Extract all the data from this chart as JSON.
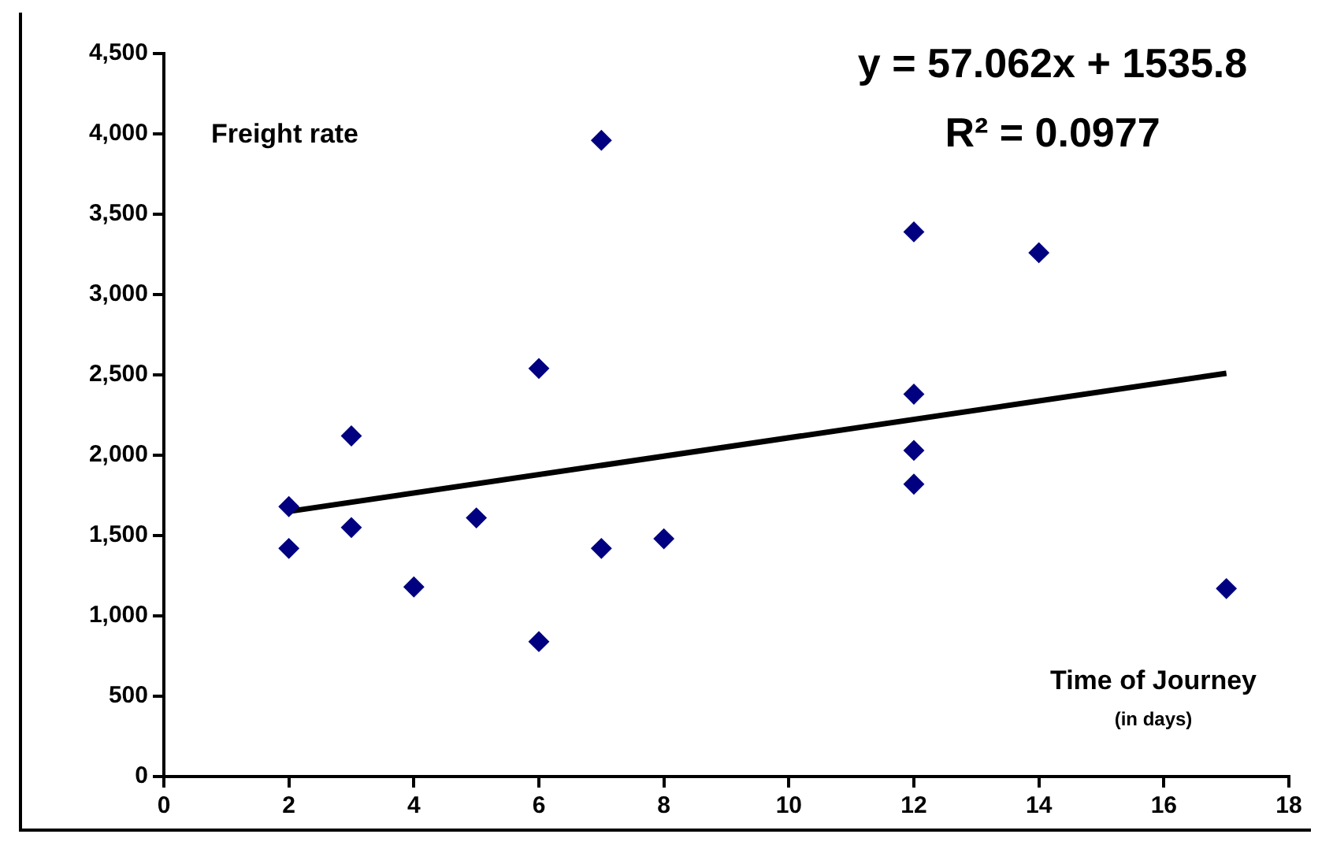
{
  "chart_data": {
    "type": "scatter",
    "ylabel": "Freight rate",
    "xlabel": "Time of Journey\n(in days)",
    "annotations": [
      "y = 57.062x + 1535.8",
      "R² = 0.0977"
    ],
    "series": [
      {
        "color": "#000080",
        "marker": "diamond",
        "x": [
          2,
          2,
          3,
          3,
          4,
          5,
          6,
          6,
          7,
          7,
          8,
          12,
          14,
          12,
          12,
          12,
          17
        ],
        "values": [
          1680,
          1420,
          2120,
          1550,
          1180,
          1610,
          2540,
          840,
          3960,
          1420,
          1480,
          3390,
          3260,
          2380,
          2030,
          1820,
          1170
        ]
      },
      {
        "type": "line",
        "color": "#000000",
        "marker": "none",
        "line_style": "solid",
        "x": [
          2,
          17
        ],
        "values": [
          1650,
          2510
        ]
      }
    ],
    "xlim": [
      0,
      18
    ],
    "xticks": [
      0,
      2,
      4,
      6,
      8,
      10,
      12,
      14,
      16,
      18
    ],
    "ylim": [
      0,
      4500
    ],
    "yticks": [
      0,
      {
        "value": 500,
        "label": "500"
      },
      {
        "value": 1000,
        "label": "1,000"
      },
      {
        "value": 1500,
        "label": "1,500"
      },
      {
        "value": 2000,
        "label": "2,000"
      },
      {
        "value": 2500,
        "label": "2,500"
      },
      {
        "value": 3000,
        "label": "3,000"
      },
      {
        "value": 3500,
        "label": "3,500"
      },
      {
        "value": 4000,
        "label": "4,000"
      },
      {
        "value": 4500,
        "label": "4,500"
      }
    ],
    "grid": false,
    "legend": false
  }
}
